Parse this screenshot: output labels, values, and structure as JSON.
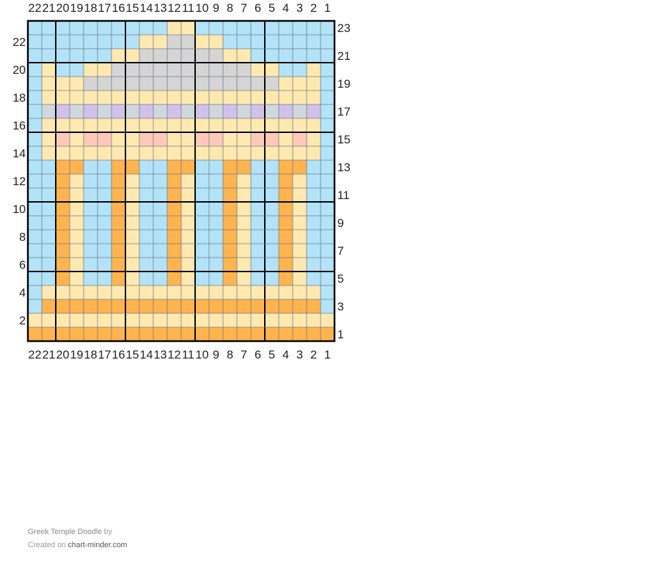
{
  "chart": {
    "columns": 22,
    "rows": 23,
    "column_labels": [
      "22",
      "21",
      "20",
      "19",
      "18",
      "17",
      "16",
      "15",
      "14",
      "13",
      "12",
      "11",
      "10",
      "9",
      "8",
      "7",
      "6",
      "5",
      "4",
      "3",
      "2",
      "1"
    ],
    "row_labels": [
      "1",
      "2",
      "3",
      "4",
      "5",
      "6",
      "7",
      "8",
      "9",
      "10",
      "11",
      "12",
      "13",
      "14",
      "15",
      "16",
      "17",
      "18",
      "19",
      "20",
      "21",
      "22",
      "23"
    ],
    "palette": {
      "B": "#b3e3f9",
      "Y": "#ffe9b0",
      "G": "#d5d5d5",
      "O": "#ffb44f",
      "P": "#d1c2eb",
      "S": "#d0d8dd",
      "K": "#ffc8b8"
    },
    "pattern": [
      "BBBBBBBBBBYYBBBBBBBBBB",
      "BBBBBBBBYYGGYYBBBBBBBB",
      "BBBBBBYYGGGGGGYYBBBBBB",
      "BYBBYYGGGGGGGGGGYYBBYB",
      "BYYYGGGGGGGGGGGGGGYYYB",
      "BYYYYYYYYYYYYYYYYYYYYB",
      "BSPSPSPSPSPSPSPSPSPSPB",
      "BYYYYYYYYYYYYYYYYYYYYB",
      "BYKYKKYYKKYYKKYYKKYKYB",
      "BYYYYYYYYYYYYYYYYYYYYB",
      "BBOOBBOOBBOOBBOOBBOOBB",
      "BBOYBBOYBBOYBBOYBBOYBB",
      "BBOYBBOYBBOYBBOYBBOYBB",
      "BBOYBBOYBBOYBBOYBBOYBB",
      "BBOYBBOYBBOYBBOYBBOYBB",
      "BBOYBBOYBBOYBBOYBBOYBB",
      "BBOYBBOYBBOYBBOYBBOYBB",
      "BBOYBBOYBBOYBBOYBBOYBB",
      "BBOYBBOYBBOYBBOYBBOYBB",
      "BYYYYYYYYYYYYYYYYYYYYB",
      "BOOOOOOOOOOOOOOOOOOOOB",
      "YYYYYYYYYYYYYYYYYYYYYY",
      "OOOOOOOOOOOOOOOOOOOOOO"
    ]
  },
  "footer": {
    "title": "Greek Temple Doodle",
    "by": "by",
    "created_on": "Created on",
    "site": "chart-minder.com"
  }
}
